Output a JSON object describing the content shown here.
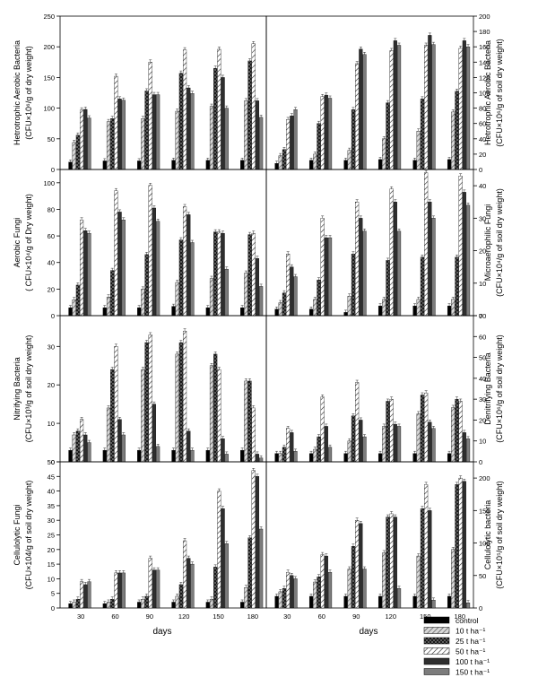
{
  "figure": {
    "x_axis_label": "days",
    "legend": [
      {
        "label": "control",
        "color": "#000000",
        "pattern": "solid-black"
      },
      {
        "label": "10 t ha⁻¹",
        "color": "#9a9a9a",
        "pattern": "hatch-gray"
      },
      {
        "label": "25 t ha⁻¹",
        "color": "#444444",
        "pattern": "crosshatch-dark"
      },
      {
        "label": "50 t ha⁻¹",
        "color": "#ffffff",
        "pattern": "hatch-white"
      },
      {
        "label": "100 t ha⁻¹",
        "color": "#303030",
        "pattern": "solid-dark"
      },
      {
        "label": "150 t ha⁻¹",
        "color": "#7c7c7c",
        "pattern": "solid-gray"
      }
    ]
  },
  "chart_data": [
    {
      "type": "bar",
      "position": "row1-left",
      "ylabel_line1": "Hetrotrophic Aerobic Bacteria",
      "ylabel_line2": "(CFU×10⁶/g of dry weight)",
      "ylim": [
        0,
        250
      ],
      "yticks": [
        0,
        50,
        100,
        150,
        200,
        250
      ],
      "categories": [
        "30",
        "60",
        "90",
        "120",
        "150",
        "180"
      ],
      "series": [
        {
          "name": "control",
          "values": [
            12,
            14,
            14,
            15,
            15,
            15
          ]
        },
        {
          "name": "10 t ha⁻¹",
          "values": [
            44,
            78,
            83,
            95,
            103,
            112
          ]
        },
        {
          "name": "25 t ha⁻¹",
          "values": [
            56,
            83,
            128,
            157,
            165,
            177
          ]
        },
        {
          "name": "50 t ha⁻¹",
          "values": [
            97,
            152,
            175,
            195,
            196,
            205
          ]
        },
        {
          "name": "100 t ha⁻¹",
          "values": [
            98,
            115,
            122,
            133,
            150,
            112
          ]
        },
        {
          "name": "150 t ha⁻¹",
          "values": [
            84,
            113,
            122,
            124,
            100,
            85
          ]
        }
      ]
    },
    {
      "type": "bar",
      "position": "row1-right",
      "ylabel_line1": "Hetrotrophic Aerobic Bacteria",
      "ylabel_line2": "(CFU×10⁶/g of soil dry weight)",
      "ylim": [
        0,
        200
      ],
      "yticks": [
        0,
        20,
        40,
        60,
        80,
        100,
        120,
        140,
        160,
        180,
        200
      ],
      "categories": [
        "30",
        "60",
        "90",
        "120",
        "150",
        "180"
      ],
      "series": [
        {
          "name": "control",
          "values": [
            8,
            12,
            12,
            13,
            12,
            13
          ]
        },
        {
          "name": "10 t ha⁻¹",
          "values": [
            18,
            20,
            25,
            40,
            50,
            75
          ]
        },
        {
          "name": "25 t ha⁻¹",
          "values": [
            26,
            60,
            78,
            87,
            92,
            102
          ]
        },
        {
          "name": "50 t ha⁻¹",
          "values": [
            65,
            95,
            138,
            155,
            162,
            158
          ]
        },
        {
          "name": "100 t ha⁻¹",
          "values": [
            70,
            97,
            157,
            168,
            175,
            168
          ]
        },
        {
          "name": "150 t ha⁻¹",
          "values": [
            78,
            93,
            150,
            162,
            163,
            160
          ]
        }
      ]
    },
    {
      "type": "bar",
      "position": "row2-left",
      "ylabel_line1": "Aerobic Fungi",
      "ylabel_line2": "( CFU×10⁴/g of Dry weight)",
      "ylim": [
        0,
        110
      ],
      "yticks": [
        0,
        20,
        40,
        60,
        80,
        100
      ],
      "categories": [
        "30",
        "60",
        "90",
        "120",
        "150",
        "180"
      ],
      "series": [
        {
          "name": "control",
          "values": [
            6,
            6,
            6,
            7,
            6,
            6
          ]
        },
        {
          "name": "10 t ha⁻¹",
          "values": [
            12,
            14,
            20,
            25,
            28,
            32
          ]
        },
        {
          "name": "25 t ha⁻¹",
          "values": [
            23,
            34,
            46,
            57,
            63,
            61
          ]
        },
        {
          "name": "50 t ha⁻¹",
          "values": [
            72,
            94,
            98,
            82,
            63,
            62
          ]
        },
        {
          "name": "100 t ha⁻¹",
          "values": [
            64,
            78,
            81,
            76,
            62,
            43
          ]
        },
        {
          "name": "150 t ha⁻¹",
          "values": [
            62,
            72,
            71,
            55,
            35,
            22
          ]
        }
      ]
    },
    {
      "type": "bar",
      "position": "row2-right",
      "ylabel_line1": "Microaerophilic Fungi",
      "ylabel_line2": "(CFU×10⁴/g of soil dry weight)",
      "ylim": [
        0,
        45
      ],
      "yticks": [
        0,
        10,
        20,
        30,
        40
      ],
      "categories": [
        "30",
        "60",
        "90",
        "120",
        "150",
        "180"
      ],
      "series": [
        {
          "name": "control",
          "values": [
            2,
            2,
            1,
            3,
            3,
            3
          ]
        },
        {
          "name": "10 t ha⁻¹",
          "values": [
            4,
            5,
            6,
            5,
            5,
            5
          ]
        },
        {
          "name": "25 t ha⁻¹",
          "values": [
            7,
            11,
            19,
            17,
            18,
            18
          ]
        },
        {
          "name": "50 t ha⁻¹",
          "values": [
            19,
            30,
            35,
            39,
            44,
            43
          ]
        },
        {
          "name": "100 t ha⁻¹",
          "values": [
            15,
            24,
            30,
            35,
            35,
            38
          ]
        },
        {
          "name": "150 t ha⁻¹",
          "values": [
            12,
            24,
            26,
            26,
            30,
            34
          ]
        }
      ]
    },
    {
      "type": "bar",
      "position": "row3-left",
      "ylabel_line1": "Nitrifying Bacteria",
      "ylabel_line2": "(CFU×10³/g of soil dry weight)",
      "ylim": [
        0,
        38
      ],
      "yticks": [
        0,
        10,
        20,
        30
      ],
      "categories": [
        "30",
        "60",
        "90",
        "120",
        "150",
        "180"
      ],
      "series": [
        {
          "name": "control",
          "values": [
            3,
            3,
            3,
            3,
            3,
            3
          ]
        },
        {
          "name": "10 t ha⁻¹",
          "values": [
            7,
            14,
            24,
            28,
            25,
            21
          ]
        },
        {
          "name": "25 t ha⁻¹",
          "values": [
            8,
            24,
            31,
            31,
            28,
            21
          ]
        },
        {
          "name": "50 t ha⁻¹",
          "values": [
            11,
            30,
            33,
            34,
            24,
            14
          ]
        },
        {
          "name": "100 t ha⁻¹",
          "values": [
            7,
            11,
            15,
            8,
            6,
            2
          ]
        },
        {
          "name": "150 t ha⁻¹",
          "values": [
            5,
            7,
            4,
            3,
            2,
            1
          ]
        }
      ]
    },
    {
      "type": "bar",
      "position": "row3-right",
      "ylabel_line1": "Denitrifying Bacteria",
      "ylabel_line2": "(CFU×10⁶/g of soil dry weight)",
      "ylim": [
        0,
        70
      ],
      "yticks": [
        0,
        10,
        20,
        30,
        40,
        50,
        60,
        70
      ],
      "categories": [
        "30",
        "60",
        "90",
        "120",
        "150",
        "180"
      ],
      "series": [
        {
          "name": "control",
          "values": [
            4,
            4,
            4,
            4,
            4,
            4
          ]
        },
        {
          "name": "10 t ha⁻¹",
          "values": [
            4,
            6,
            10,
            17,
            23,
            26
          ]
        },
        {
          "name": "25 t ha⁻¹",
          "values": [
            7,
            12,
            22,
            29,
            32,
            30
          ]
        },
        {
          "name": "50 t ha⁻¹",
          "values": [
            16,
            31,
            38,
            30,
            33,
            29
          ]
        },
        {
          "name": "100 t ha⁻¹",
          "values": [
            14,
            17,
            20,
            18,
            19,
            14
          ]
        },
        {
          "name": "150 t ha⁻¹",
          "values": [
            5,
            7,
            12,
            17,
            16,
            11
          ]
        }
      ]
    },
    {
      "type": "bar",
      "position": "row4-left",
      "ylabel_line1": "Cellulolytic Fungi",
      "ylabel_line2": "(CFU×104/g of soil dry weight)",
      "ylim": [
        0,
        50
      ],
      "yticks": [
        0,
        5,
        10,
        15,
        20,
        25,
        30,
        35,
        40,
        45,
        50
      ],
      "categories": [
        "30",
        "60",
        "90",
        "120",
        "150",
        "180"
      ],
      "series": [
        {
          "name": "control",
          "values": [
            1.5,
            1.5,
            2,
            2,
            2,
            2
          ]
        },
        {
          "name": "10 t ha⁻¹",
          "values": [
            2,
            2,
            3,
            4,
            3,
            7
          ]
        },
        {
          "name": "25 t ha⁻¹",
          "values": [
            3,
            3,
            4,
            8,
            14,
            24
          ]
        },
        {
          "name": "50 t ha⁻¹",
          "values": [
            9,
            12,
            17,
            23,
            40,
            47
          ]
        },
        {
          "name": "100 t ha⁻¹",
          "values": [
            8,
            12,
            13,
            17,
            34,
            45
          ]
        },
        {
          "name": "150 t ha⁻¹",
          "values": [
            9,
            12,
            13,
            15,
            22,
            27
          ]
        }
      ]
    },
    {
      "type": "bar",
      "position": "row4-right",
      "ylabel_line1": "Cellulolytic bacteria",
      "ylabel_line2": "(CFU×10⁵/g of soil dry weight)",
      "ylim": [
        0,
        225
      ],
      "yticks": [
        0,
        50,
        100,
        150,
        200
      ],
      "categories": [
        "30",
        "60",
        "90",
        "120",
        "150",
        "180"
      ],
      "series": [
        {
          "name": "control",
          "values": [
            18,
            18,
            18,
            18,
            18,
            18
          ]
        },
        {
          "name": "10 t ha⁻¹",
          "values": [
            25,
            40,
            60,
            85,
            80,
            90
          ]
        },
        {
          "name": "25 t ha⁻¹",
          "values": [
            30,
            48,
            95,
            140,
            153,
            190
          ]
        },
        {
          "name": "50 t ha⁻¹",
          "values": [
            55,
            82,
            135,
            145,
            190,
            200
          ]
        },
        {
          "name": "100 t ha⁻¹",
          "values": [
            50,
            80,
            130,
            140,
            150,
            195
          ]
        },
        {
          "name": "150 t ha⁻¹",
          "values": [
            45,
            55,
            60,
            30,
            12,
            8
          ]
        }
      ]
    }
  ]
}
